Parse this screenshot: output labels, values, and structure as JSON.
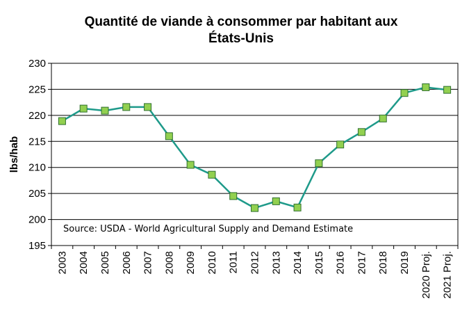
{
  "chart_data": {
    "type": "line",
    "title_line1": "Quantité de viande à consommer par habitant aux",
    "title_line2": "États-Unis",
    "ylabel": "lbs/hab",
    "xlabel": "",
    "annotation": "Source: USDA - World Agricultural Supply and Demand Estimate",
    "categories": [
      "2003",
      "2004",
      "2005",
      "2006",
      "2007",
      "2008",
      "2009",
      "2010",
      "2011",
      "2012",
      "2013",
      "2014",
      "2015",
      "2016",
      "2017",
      "2018",
      "2019",
      "2020 Proj.",
      "2021 Proj."
    ],
    "series": [
      {
        "values": [
          218.9,
          221.3,
          220.9,
          221.6,
          221.6,
          216.0,
          210.5,
          208.6,
          204.5,
          202.2,
          203.5,
          202.3,
          210.8,
          214.4,
          216.8,
          219.4,
          224.3,
          225.4,
          224.9
        ]
      }
    ],
    "ylim": [
      195,
      230
    ],
    "yticks": [
      195,
      200,
      205,
      210,
      215,
      220,
      225,
      230
    ],
    "grid": true,
    "colors": {
      "line": "#1e9a8a",
      "marker_fill": "#92d050",
      "marker_edge": "#2f6f2f",
      "grid": "#000000"
    }
  }
}
